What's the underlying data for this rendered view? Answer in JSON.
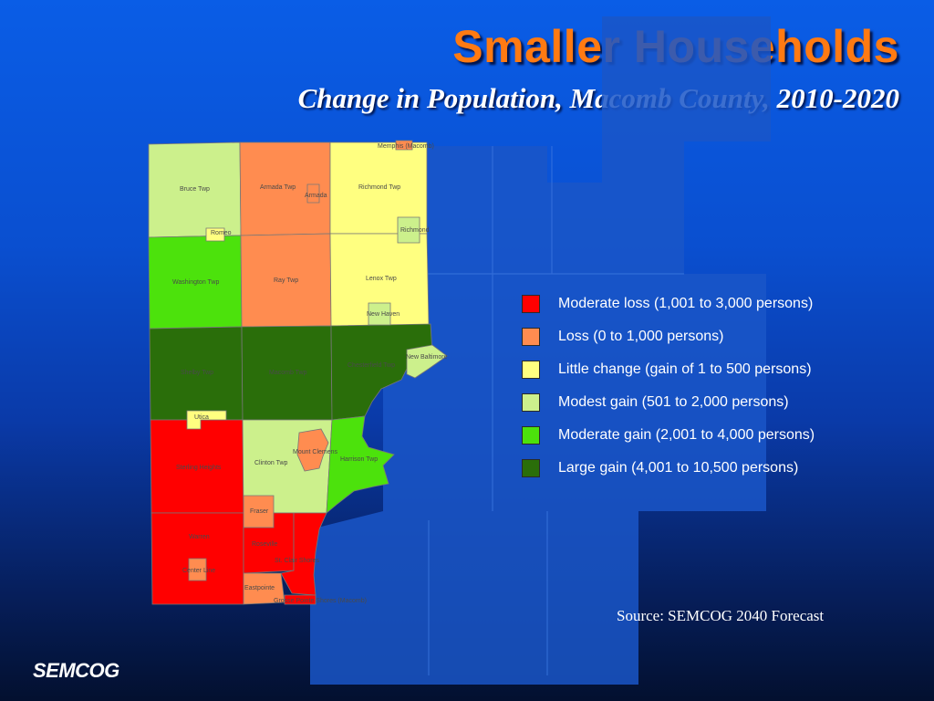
{
  "title": "Smaller Households",
  "subtitle": "Change in Population, Macomb County, 2010-2020",
  "legend": [
    {
      "label": "Moderate loss (1,001 to 3,000 persons)",
      "color": "#ff0000"
    },
    {
      "label": "Loss (0 to 1,000 persons)",
      "color": "#ff8c50"
    },
    {
      "label": "Little change (gain of 1 to 500 persons)",
      "color": "#ffff80"
    },
    {
      "label": "Modest gain (501 to 2,000 persons)",
      "color": "#ccf08c"
    },
    {
      "label": "Moderate gain (2,001 to 4,000 persons)",
      "color": "#4ce20c"
    },
    {
      "label": "Large gain (4,001 to 10,500 persons)",
      "color": "#2a6e0a"
    }
  ],
  "source": "Source: SEMCOG 2040 Forecast",
  "logo": "SEMCOG",
  "places": {
    "memphis": "Memphis (Macomb)",
    "bruce": "Bruce Twp",
    "armada_twp": "Armada Twp",
    "armada": "Armada",
    "richmond_twp": "Richmond Twp",
    "romeo": "Romeo",
    "richmond": "Richmond",
    "washington": "Washington Twp",
    "ray": "Ray Twp",
    "lenox": "Lenox Twp",
    "new_haven": "New Haven",
    "new_baltimore": "New Baltimore",
    "shelby": "Shelby Twp",
    "macomb": "Macomb Twp",
    "chesterfield": "Chesterfield Twp",
    "utica": "Utica",
    "mount_clemens": "Mount Clemens",
    "harrison": "Harrison Twp",
    "sterling_heights": "Sterling Heights",
    "clinton": "Clinton Twp",
    "fraser": "Fraser",
    "warren": "Warren",
    "roseville": "Roseville",
    "st_clair_shores": "St. Clair Shores",
    "center_line": "Center Line",
    "eastpointe": "Eastpointe",
    "grosse_pointe": "Grosse Pointe Shores (Macomb)"
  }
}
